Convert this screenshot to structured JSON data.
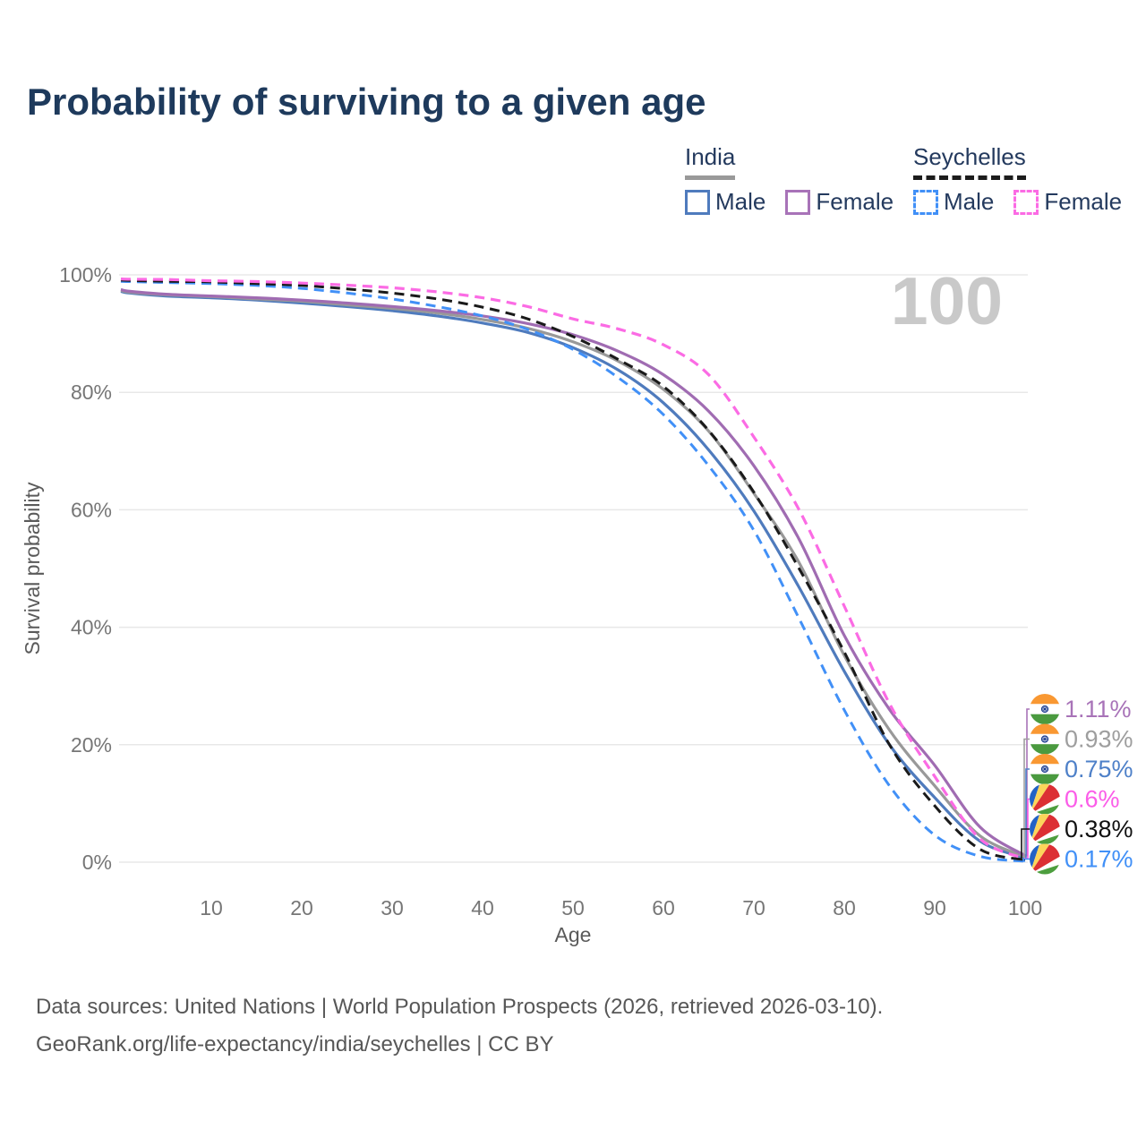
{
  "title": "Probability of surviving to a given age",
  "legend": {
    "groups": [
      {
        "name": "India",
        "line_style": "solid",
        "underline_color": "#999999",
        "items": [
          {
            "label": "Male",
            "color": "#4f7bbd",
            "dash": false
          },
          {
            "label": "Female",
            "color": "#a873b8",
            "dash": false
          }
        ]
      },
      {
        "name": "Seychelles",
        "line_style": "dashed",
        "underline_color": "#1c1c1c",
        "items": [
          {
            "label": "Male",
            "color": "#4190f7",
            "dash": true
          },
          {
            "label": "Female",
            "color": "#fb6be4",
            "dash": true
          }
        ]
      }
    ]
  },
  "footer": {
    "line1": "Data sources: United Nations | World Population Prospects (2026, retrieved 2026-03-10).",
    "line2": "GeoRank.org/life-expectancy/india/seychelles | CC BY"
  },
  "chart_data": {
    "type": "line",
    "title": "Probability of surviving to a given age",
    "xlabel": "Age",
    "ylabel": "Survival probability",
    "xlim": [
      0,
      100
    ],
    "ylim": [
      0,
      100
    ],
    "grid": "horizontal",
    "legend_position": "top-right",
    "hover_age_watermark": "100",
    "xticks": [
      10,
      20,
      30,
      40,
      50,
      60,
      70,
      80,
      90,
      100
    ],
    "yticks": [
      {
        "value": 0,
        "label": "0%"
      },
      {
        "value": 20,
        "label": "20%"
      },
      {
        "value": 40,
        "label": "40%"
      },
      {
        "value": 60,
        "label": "60%"
      },
      {
        "value": 80,
        "label": "80%"
      },
      {
        "value": 100,
        "label": "100%"
      }
    ],
    "x": [
      0,
      1,
      5,
      10,
      15,
      20,
      25,
      30,
      35,
      40,
      45,
      50,
      55,
      60,
      65,
      70,
      75,
      80,
      85,
      90,
      95,
      100
    ],
    "series": [
      {
        "name": "India Male",
        "country": "India",
        "sex": "Male",
        "color": "#4f7bbd",
        "dash": false,
        "width": 3.2,
        "values": [
          97.2,
          96.9,
          96.4,
          96.1,
          95.7,
          95.2,
          94.6,
          93.9,
          93.0,
          91.8,
          90.2,
          87.6,
          83.8,
          78.2,
          70.2,
          59.8,
          46.8,
          32.5,
          20.0,
          11.0,
          3.6,
          0.75
        ]
      },
      {
        "name": "India",
        "country": "India",
        "sex": "Both",
        "color": "#999999",
        "dash": false,
        "width": 3.2,
        "values": [
          97.35,
          97.05,
          96.6,
          96.3,
          95.9,
          95.5,
          94.9,
          94.3,
          93.5,
          92.4,
          90.9,
          88.6,
          85.3,
          80.5,
          73.4,
          62.8,
          51.0,
          35.2,
          22.5,
          13.0,
          4.5,
          0.93
        ]
      },
      {
        "name": "India Female",
        "country": "India",
        "sex": "Female",
        "color": "#a06cb2",
        "dash": false,
        "width": 3.2,
        "values": [
          97.5,
          97.2,
          96.7,
          96.4,
          96.1,
          95.7,
          95.2,
          94.6,
          93.9,
          93.0,
          91.7,
          89.8,
          87.0,
          83.0,
          76.8,
          67.5,
          55.0,
          38.6,
          26.0,
          16.5,
          6.0,
          1.11
        ]
      },
      {
        "name": "Seychelles Male",
        "country": "Seychelles",
        "sex": "Male",
        "color": "#4190f7",
        "dash": true,
        "width": 3,
        "values": [
          98.9,
          98.85,
          98.7,
          98.5,
          98.2,
          97.7,
          96.9,
          95.9,
          94.6,
          93.0,
          90.7,
          87.3,
          82.5,
          76.2,
          67.5,
          56.5,
          41.5,
          25.9,
          13.0,
          4.6,
          1.0,
          0.17
        ]
      },
      {
        "name": "Seychelles",
        "country": "Seychelles",
        "sex": "Both",
        "color": "#1a1a1a",
        "dash": true,
        "width": 3,
        "values": [
          99.1,
          99.05,
          98.9,
          98.8,
          98.5,
          98.2,
          97.6,
          96.9,
          95.9,
          94.5,
          92.5,
          89.5,
          85.6,
          81.0,
          73.5,
          63.0,
          50.0,
          35.8,
          20.0,
          9.6,
          2.2,
          0.38
        ]
      },
      {
        "name": "Seychelles Female",
        "country": "Seychelles",
        "sex": "Female",
        "color": "#fb6be4",
        "dash": true,
        "width": 3.2,
        "values": [
          99.3,
          99.25,
          99.2,
          99.0,
          98.85,
          98.6,
          98.25,
          97.8,
          97.1,
          96.1,
          94.6,
          92.5,
          90.8,
          88.1,
          83.0,
          72.4,
          60.0,
          43.6,
          27.0,
          14.6,
          4.0,
          0.6
        ]
      }
    ],
    "end_labels": [
      {
        "series": "India Female",
        "text": "1.11%",
        "flag": "india",
        "color": "#a873b8"
      },
      {
        "series": "India",
        "text": "0.93%",
        "flag": "india",
        "color": "#9e9e9e"
      },
      {
        "series": "India Male",
        "text": "0.75%",
        "flag": "india",
        "color": "#4e80c8"
      },
      {
        "series": "Seychelles Female",
        "text": "0.6%",
        "flag": "seychelles",
        "color": "#fb5ce8"
      },
      {
        "series": "Seychelles",
        "text": "0.38%",
        "flag": "seychelles",
        "color": "#111111"
      },
      {
        "series": "Seychelles Male",
        "text": "0.17%",
        "flag": "seychelles",
        "color": "#4190f7"
      }
    ]
  }
}
